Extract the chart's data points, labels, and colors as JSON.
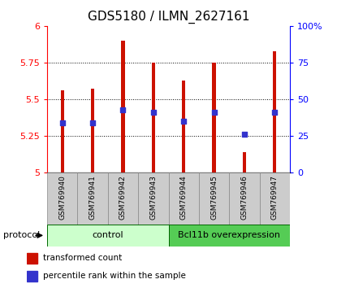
{
  "title": "GDS5180 / ILMN_2627161",
  "samples": [
    "GSM769940",
    "GSM769941",
    "GSM769942",
    "GSM769943",
    "GSM769944",
    "GSM769945",
    "GSM769946",
    "GSM769947"
  ],
  "bar_tops": [
    5.56,
    5.57,
    5.9,
    5.75,
    5.63,
    5.75,
    5.14,
    5.83
  ],
  "blue_dots": [
    5.34,
    5.34,
    5.43,
    5.41,
    5.35,
    5.41,
    5.26,
    5.41
  ],
  "bar_bottom": 5.0,
  "ylim": [
    5.0,
    6.0
  ],
  "y_ticks_left": [
    5,
    5.25,
    5.5,
    5.75,
    6
  ],
  "y_ticks_left_labels": [
    "5",
    "5.25",
    "5.5",
    "5.75",
    "6"
  ],
  "y_ticks_right_vals": [
    0,
    25,
    50,
    75,
    100
  ],
  "y_ticks_right_labels": [
    "0",
    "25",
    "50",
    "75",
    "100%"
  ],
  "bar_color": "#cc1100",
  "dot_color": "#3333cc",
  "bar_width": 0.12,
  "control_label": "control",
  "treatment_label": "Bcl11b overexpression",
  "protocol_label": "protocol",
  "control_bg": "#ccffcc",
  "treatment_bg": "#55cc55",
  "sample_bg": "#cccccc",
  "legend_red_label": "transformed count",
  "legend_blue_label": "percentile rank within the sample",
  "title_fontsize": 11,
  "tick_fontsize": 8,
  "sample_fontsize": 6.5,
  "legend_fontsize": 7.5,
  "protocol_fontsize": 8
}
